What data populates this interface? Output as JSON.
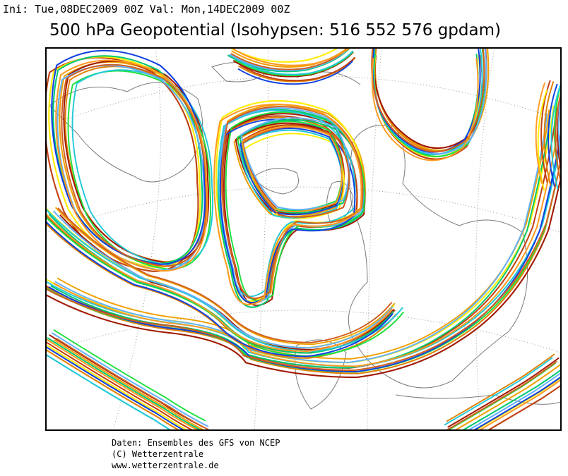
{
  "header": {
    "info": "Ini: Tue,08DEC2009 00Z Val: Mon,14DEC2009 00Z",
    "title": "500 hPa Geopotential (Isohypsen: 516 552 576 gpdam)"
  },
  "footer": {
    "lines": [
      "Daten: Ensembles des GFS von NCEP",
      "(C) Wetterzentrale",
      "www.wetterzentrale.de"
    ]
  }
}
